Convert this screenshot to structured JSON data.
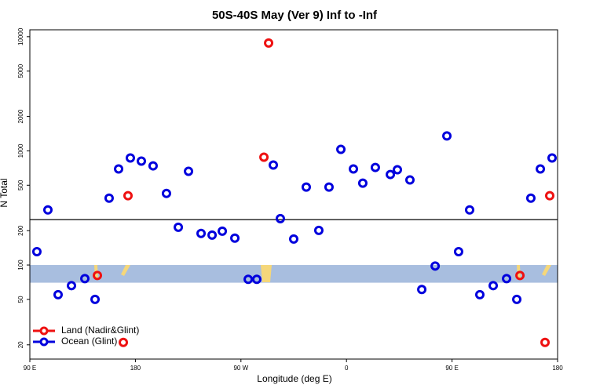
{
  "chart_data": {
    "type": "scatter",
    "title": "50S-40S May (Ver 9)   Inf to -Inf",
    "x_label": "Longitude (deg E)",
    "y_label": "N Total",
    "log_y": true,
    "xlim": [
      90,
      540
    ],
    "ylim": [
      15,
      11500
    ],
    "xticks": [
      {
        "value": 90,
        "label": "90 E"
      },
      {
        "value": 180,
        "label": "180"
      },
      {
        "value": 270,
        "label": "90 W"
      },
      {
        "value": 360,
        "label": "0"
      },
      {
        "value": 450,
        "label": "90 E"
      },
      {
        "value": 540,
        "label": "180"
      }
    ],
    "yticks": [
      20,
      50,
      100,
      200,
      500,
      1000,
      2000,
      5000,
      10000
    ],
    "reference_line": 250,
    "band": [
      70,
      100
    ],
    "band_color": "#a8bedf",
    "legend": "lower left",
    "series": [
      {
        "name": "Land (Nadir&Glint)",
        "color": "#ee1111",
        "x": [
          147.6,
          169.7,
          173.7,
          289.6,
          293.6,
          507.9,
          529.3,
          533.3
        ],
        "values": [
          81,
          21,
          405,
          881,
          8810,
          81,
          21,
          405
        ]
      },
      {
        "name": "Ocean (Glint)",
        "color": "#0000dd",
        "x": [
          96,
          105.4,
          114.1,
          125.5,
          136.9,
          145.6,
          157.6,
          165.7,
          175.7,
          185.1,
          195.1,
          206.5,
          216.6,
          225.3,
          236,
          245.4,
          254.1,
          264.8,
          276.2,
          283.5,
          297.6,
          303.6,
          315,
          325.7,
          336.4,
          345.1,
          355.2,
          365.9,
          373.9,
          384.6,
          397.4,
          403.4,
          414.1,
          424.2,
          435.6,
          445.6,
          455.6,
          465,
          473.7,
          485.1,
          496.5,
          505.2,
          517.2,
          525.3,
          535.3
        ],
        "values": [
          131,
          304,
          55,
          66,
          76,
          50,
          385,
          694,
          867,
          813,
          739,
          424,
          214,
          662,
          189,
          183,
          198,
          172,
          75,
          75,
          751,
          255,
          169,
          482,
          201,
          482,
          1032,
          694,
          521,
          716,
          621,
          683,
          556,
          61,
          98,
          1352,
          131,
          304,
          55,
          66,
          76,
          50,
          385,
          694,
          867
        ]
      }
    ]
  }
}
